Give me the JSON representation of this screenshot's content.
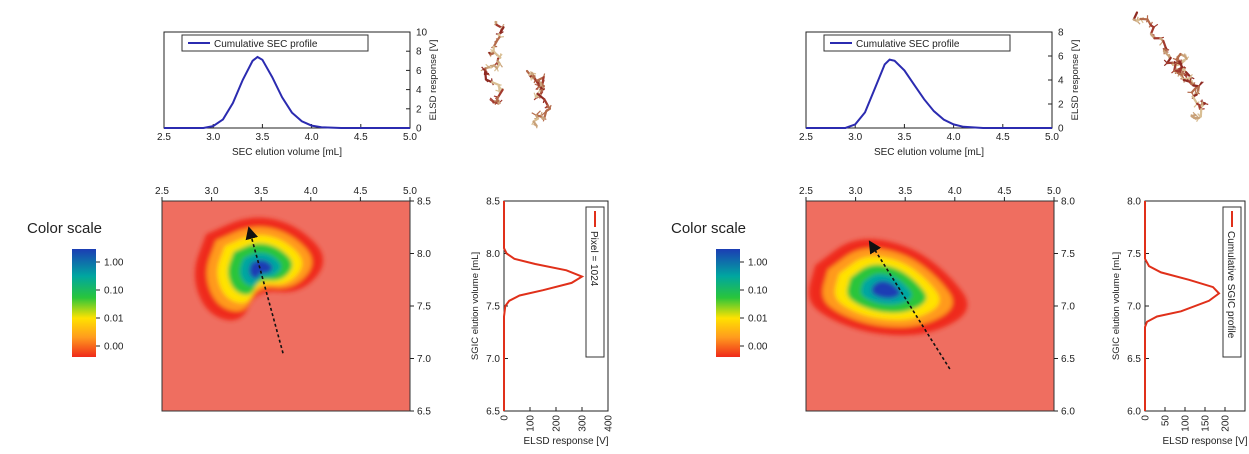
{
  "colors": {
    "profile_line": "#2b2bb0",
    "response_line": "#e0301a",
    "background_red": "#ef6e60",
    "arrow": "#111111",
    "colorscale_stops": [
      "#ef2a1a",
      "#ff9a1e",
      "#ffe200",
      "#29c53b",
      "#00a6a0",
      "#1c3db4"
    ]
  },
  "icons": {
    "arrow": "dashed-arrow",
    "polymer": "branched-polymer-structure"
  },
  "chart_data": [
    {
      "panel": "left",
      "type": "line",
      "legend": "Cumulative SEC profile",
      "legend_position": "top-left",
      "xlabel": "SEC elution volume [mL]",
      "ylabel": "ELSD response [V]",
      "xlim": [
        2.5,
        5.0
      ],
      "ylim": [
        0,
        10
      ],
      "xticks": [
        "2.5",
        "3.0",
        "3.5",
        "4.0",
        "4.5",
        "5.0"
      ],
      "yticks": [
        "0",
        "2",
        "4",
        "6",
        "8",
        "10"
      ],
      "series": [
        {
          "name": "Cumulative SEC profile",
          "x": [
            2.5,
            2.9,
            3.0,
            3.1,
            3.2,
            3.3,
            3.4,
            3.45,
            3.5,
            3.6,
            3.7,
            3.8,
            3.9,
            4.0,
            4.1,
            4.3,
            5.0
          ],
          "y": [
            0,
            0,
            0.2,
            0.9,
            2.6,
            5.0,
            7.0,
            7.4,
            7.1,
            5.3,
            3.2,
            1.6,
            0.7,
            0.25,
            0.08,
            0,
            0
          ]
        }
      ]
    },
    {
      "panel": "left",
      "type": "heatmap",
      "title": "Color scale",
      "colorbar_ticks": [
        "1.00",
        "0.10",
        "0.01",
        "0.00"
      ],
      "xlim": [
        2.5,
        5.0
      ],
      "ylim": [
        6.5,
        8.5
      ],
      "xticks": [
        "2.5",
        "3.0",
        "3.5",
        "4.0",
        "4.5",
        "5.0"
      ],
      "yticks": [
        "6.5",
        "7.0",
        "7.5",
        "8.0",
        "8.5"
      ],
      "peak": [
        3.5,
        7.85
      ],
      "arrow": {
        "from": [
          3.72,
          7.05
        ],
        "to": [
          3.38,
          8.23
        ]
      }
    },
    {
      "panel": "left",
      "type": "line",
      "legend": "Pixel = 1024",
      "legend_position": "top-right",
      "xlabel": "ELSD response [V]",
      "ylabel": "SGIC elution volume [mL]",
      "xlim": [
        0,
        400
      ],
      "ylim": [
        6.5,
        8.5
      ],
      "xticks": [
        "0",
        "100",
        "200",
        "300",
        "400"
      ],
      "yticks": [
        "6.5",
        "7.0",
        "7.5",
        "8.0",
        "8.5"
      ],
      "series": [
        {
          "name": "Pixel = 1024",
          "x": [
            0,
            0,
            5,
            20,
            60,
            150,
            260,
            300,
            240,
            120,
            40,
            10,
            0,
            0
          ],
          "y": [
            6.5,
            7.4,
            7.5,
            7.55,
            7.6,
            7.65,
            7.72,
            7.78,
            7.84,
            7.9,
            7.95,
            8.0,
            8.05,
            8.5
          ]
        }
      ]
    },
    {
      "panel": "right",
      "type": "line",
      "legend": "Cumulative SEC profile",
      "legend_position": "top-left",
      "xlabel": "SEC elution volume [mL]",
      "ylabel": "ELSD response [V]",
      "xlim": [
        2.5,
        5.0
      ],
      "ylim": [
        0,
        8
      ],
      "xticks": [
        "2.5",
        "3.0",
        "3.5",
        "4.0",
        "4.5",
        "5.0"
      ],
      "yticks": [
        "0",
        "2",
        "4",
        "6",
        "8"
      ],
      "series": [
        {
          "name": "Cumulative SEC profile",
          "x": [
            2.5,
            2.9,
            3.0,
            3.1,
            3.2,
            3.3,
            3.35,
            3.4,
            3.5,
            3.6,
            3.7,
            3.8,
            3.9,
            4.0,
            4.1,
            4.3,
            5.0
          ],
          "y": [
            0,
            0,
            0.3,
            1.3,
            3.3,
            5.3,
            5.7,
            5.6,
            4.8,
            3.6,
            2.4,
            1.4,
            0.7,
            0.3,
            0.1,
            0,
            0
          ]
        }
      ]
    },
    {
      "panel": "right",
      "type": "heatmap",
      "title": "Color scale",
      "colorbar_ticks": [
        "1.00",
        "0.10",
        "0.01",
        "0.00"
      ],
      "xlim": [
        2.5,
        5.0
      ],
      "ylim": [
        6.0,
        8.0
      ],
      "xticks": [
        "2.5",
        "3.0",
        "3.5",
        "4.0",
        "4.5",
        "5.0"
      ],
      "yticks": [
        "6.0",
        "6.5",
        "7.0",
        "7.5",
        "8.0"
      ],
      "peak": [
        3.3,
        7.15
      ],
      "arrow": {
        "from": [
          3.95,
          6.4
        ],
        "to": [
          3.15,
          7.6
        ]
      }
    },
    {
      "panel": "right",
      "type": "line",
      "legend": "Cumulative SGIC profile",
      "legend_position": "top-right",
      "xlabel": "ELSD response [V]",
      "ylabel": "SGIC elution volume [mL]",
      "xlim": [
        0,
        250
      ],
      "ylim": [
        6.0,
        8.0
      ],
      "xticks": [
        "0",
        "50",
        "100",
        "150",
        "200"
      ],
      "yticks": [
        "6.0",
        "6.5",
        "7.0",
        "7.5",
        "8.0"
      ],
      "series": [
        {
          "name": "Cumulative SGIC profile",
          "x": [
            0,
            0,
            5,
            30,
            90,
            160,
            185,
            170,
            110,
            40,
            10,
            0,
            0
          ],
          "y": [
            6.0,
            6.8,
            6.85,
            6.9,
            6.95,
            7.05,
            7.12,
            7.18,
            7.25,
            7.32,
            7.38,
            7.45,
            8.0
          ]
        }
      ]
    }
  ]
}
